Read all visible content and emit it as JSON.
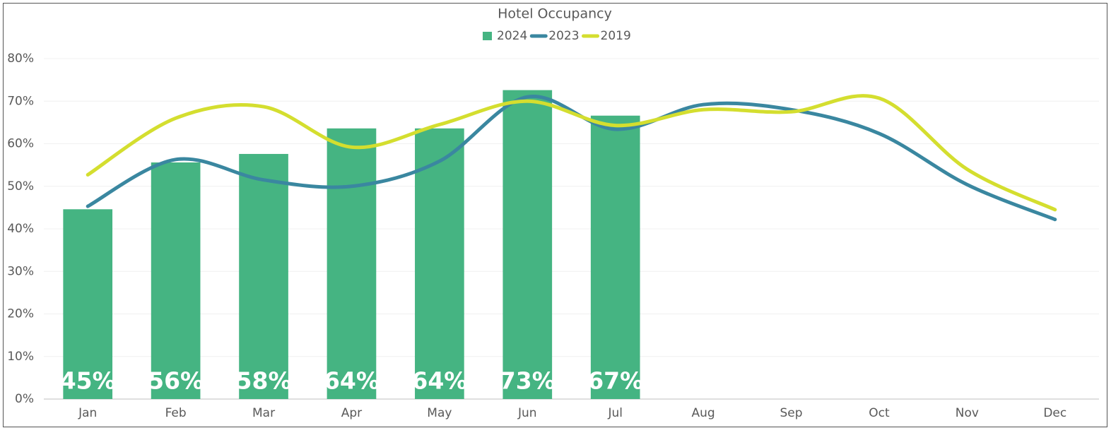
{
  "chart_data": {
    "type": "bar",
    "title": "Hotel Occupancy",
    "categories": [
      "Jan",
      "Feb",
      "Mar",
      "Apr",
      "May",
      "Jun",
      "Jul",
      "Aug",
      "Sep",
      "Oct",
      "Nov",
      "Dec"
    ],
    "series": [
      {
        "name": "2024",
        "type": "bar",
        "color": "#45b482",
        "values": [
          44.6,
          55.6,
          57.6,
          63.6,
          63.6,
          72.6,
          66.6,
          null,
          null,
          null,
          null,
          null
        ],
        "value_labels": [
          "45%",
          "56%",
          "58%",
          "64%",
          "64%",
          "73%",
          "67%",
          null,
          null,
          null,
          null,
          null
        ]
      },
      {
        "name": "2023",
        "type": "line",
        "color": "#3a87a0",
        "values": [
          45.3,
          56.3,
          51.5,
          50,
          55.9,
          71,
          63.4,
          69.2,
          68,
          62.4,
          50.4,
          42.2
        ]
      },
      {
        "name": "2019",
        "type": "line",
        "color": "#d4de2f",
        "values": [
          52.7,
          66,
          68.7,
          59.2,
          64.5,
          70,
          64.3,
          68,
          67.5,
          70.7,
          54,
          44.5
        ]
      }
    ],
    "ylim": [
      0,
      80
    ],
    "yticks": [
      {
        "value": 0,
        "label": "0%"
      },
      {
        "value": 10,
        "label": "10%"
      },
      {
        "value": 20,
        "label": "20%"
      },
      {
        "value": 30,
        "label": "30%"
      },
      {
        "value": 40,
        "label": "40%"
      },
      {
        "value": 50,
        "label": "50%"
      },
      {
        "value": 60,
        "label": "60%"
      },
      {
        "value": 70,
        "label": "70%"
      },
      {
        "value": 80,
        "label": "80%"
      }
    ],
    "grid": true,
    "legend": "top"
  }
}
